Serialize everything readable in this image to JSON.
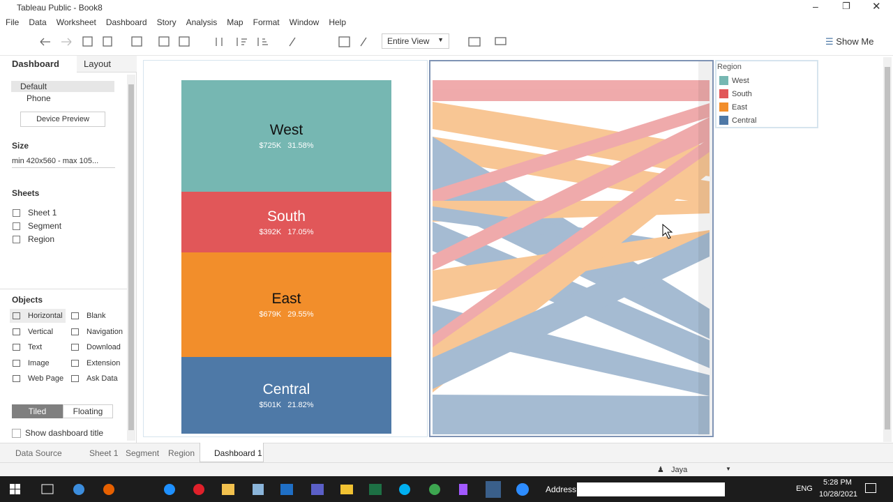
{
  "window_title": "Tableau Public - Book8",
  "menu": [
    "File",
    "Data",
    "Worksheet",
    "Dashboard",
    "Story",
    "Analysis",
    "Map",
    "Format",
    "Window",
    "Help"
  ],
  "toolbar": {
    "fit": "Entire View",
    "show_me": "Show Me"
  },
  "side_panel": {
    "tabs": [
      "Dashboard",
      "Layout"
    ],
    "devices": [
      "Default",
      "Phone"
    ],
    "device_preview": "Device Preview",
    "size_heading": "Size",
    "size_value": "min 420x560 - max 105...",
    "sheets_heading": "Sheets",
    "sheets": [
      "Sheet 1",
      "Segment",
      "Region"
    ],
    "objects_heading": "Objects",
    "objects": [
      "Horizontal",
      "Blank",
      "Vertical",
      "Navigation",
      "Text",
      "Download",
      "Image",
      "Extension",
      "Web Page",
      "Ask Data"
    ],
    "layout_modes": [
      "Tiled",
      "Floating"
    ],
    "show_title": "Show dashboard title"
  },
  "dashboard": {
    "regions": [
      {
        "name": "West",
        "sales": "$725K",
        "share": "31.58%",
        "color": "#76b7b2"
      },
      {
        "name": "South",
        "sales": "$392K",
        "share": "17.05%",
        "color": "#e15759"
      },
      {
        "name": "East",
        "sales": "$679K",
        "share": "29.55%",
        "color": "#f28e2b"
      },
      {
        "name": "Central",
        "sales": "$501K",
        "share": "21.82%",
        "color": "#4e79a7"
      }
    ],
    "legend_title": "Region"
  },
  "sheet_tabs": [
    "Data Source",
    "Sheet 1",
    "Segment",
    "Region",
    "Dashboard 1"
  ],
  "status_user": "Jaya",
  "taskbar": {
    "address": "Address",
    "language": "ENG",
    "time": "5:28 PM",
    "date": "10/28/2021"
  }
}
